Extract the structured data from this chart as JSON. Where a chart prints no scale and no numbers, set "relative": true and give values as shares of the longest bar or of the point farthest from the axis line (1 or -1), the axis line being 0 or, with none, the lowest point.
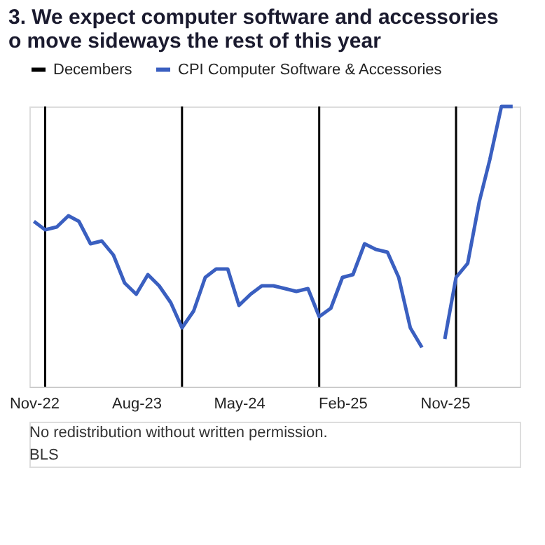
{
  "chart_data": {
    "type": "line",
    "title": [
      "3. We expect computer software and accessories",
      "o move sideways the rest of this year"
    ],
    "relative": true,
    "legend": "top",
    "grid": false,
    "marker": "none",
    "line_style": "solid",
    "x": [
      "2022-11",
      "2022-12",
      "2023-01",
      "2023-02",
      "2023-03",
      "2023-04",
      "2023-05",
      "2023-06",
      "2023-07",
      "2023-08",
      "2023-09",
      "2023-10",
      "2023-11",
      "2023-12",
      "2024-01",
      "2024-02",
      "2024-03",
      "2024-04",
      "2024-05",
      "2024-06",
      "2024-07",
      "2024-08",
      "2024-09",
      "2024-10",
      "2024-11",
      "2024-12",
      "2025-01",
      "2025-02",
      "2025-03",
      "2025-04",
      "2025-05",
      "2025-06",
      "2025-07",
      "2025-08",
      "2025-09",
      "2025-10",
      "2025-11",
      "2025-12",
      "2026-01",
      "2026-02",
      "2026-03",
      "2026-04",
      "2026-05"
    ],
    "series": [
      {
        "name": "CPI Computer Software & Accessories",
        "color": "#3a5fc0",
        "values": [
          0.59,
          0.56,
          0.57,
          0.61,
          0.59,
          0.51,
          0.52,
          0.47,
          0.37,
          0.33,
          0.4,
          0.36,
          0.3,
          0.21,
          0.27,
          0.39,
          0.42,
          0.42,
          0.29,
          0.33,
          0.36,
          0.36,
          0.35,
          0.34,
          0.35,
          0.25,
          0.28,
          0.39,
          0.4,
          0.51,
          0.49,
          0.48,
          0.39,
          0.21,
          0.14,
          null,
          0.17,
          0.39,
          0.44,
          0.66,
          0.81,
          1,
          1
        ]
      }
    ],
    "xlim": [
      "2022-10-20",
      "2026-05-20"
    ],
    "xticks": [
      {
        "value": "2022-11",
        "label": "Nov-22"
      },
      {
        "value": "2023-08",
        "label": "Aug-23"
      },
      {
        "value": "2024-05",
        "label": "May-24"
      },
      {
        "value": "2025-02",
        "label": "Feb-25"
      },
      {
        "value": "2025-11",
        "label": "Nov-25"
      }
    ],
    "ref_lines": [
      {
        "axis": "x",
        "value": "2022-12",
        "label": "Decembers",
        "color": "#000000"
      },
      {
        "axis": "x",
        "value": "2023-12",
        "color": "#000000"
      },
      {
        "axis": "x",
        "value": "2024-12",
        "color": "#000000"
      },
      {
        "axis": "x",
        "value": "2025-12",
        "color": "#000000"
      }
    ],
    "annotations": [
      "No redistribution without written permission.",
      "BLS"
    ]
  }
}
